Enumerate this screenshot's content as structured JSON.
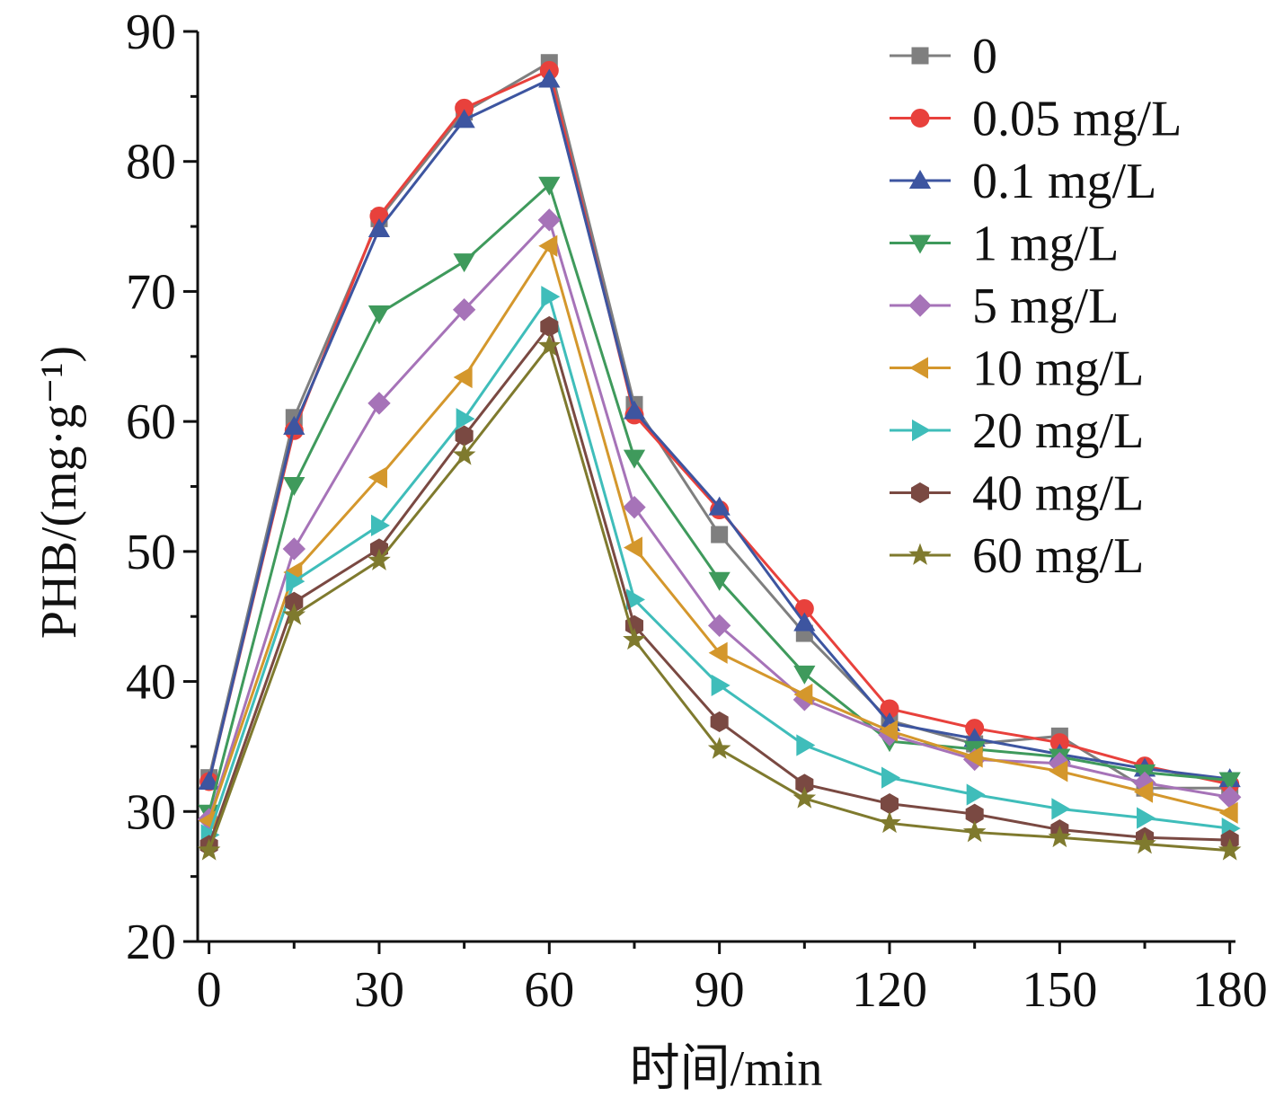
{
  "chart_data": {
    "type": "line",
    "title": "",
    "xlabel": "时间/min",
    "ylabel": "PHB/(mg·g⁻¹)",
    "xlim": [
      -2,
      181
    ],
    "ylim": [
      20,
      90
    ],
    "xticks": [
      0,
      30,
      60,
      90,
      120,
      150,
      180
    ],
    "yticks": [
      20,
      30,
      40,
      50,
      60,
      70,
      80,
      90
    ],
    "grid": false,
    "legend_position": "top-right",
    "x": [
      0,
      15,
      30,
      45,
      60,
      75,
      90,
      105,
      120,
      135,
      150,
      165,
      180
    ],
    "series": [
      {
        "name": "0",
        "color": "#7f7f7f",
        "marker": "square",
        "values": [
          32.6,
          60.3,
          75.6,
          83.8,
          87.6,
          61.3,
          51.3,
          43.7,
          37.0,
          35.2,
          35.8,
          31.8,
          31.8
        ]
      },
      {
        "name": "0.05 mg/L",
        "color": "#e8413c",
        "marker": "circle",
        "values": [
          32.3,
          59.3,
          75.8,
          84.1,
          87.0,
          60.5,
          53.2,
          45.6,
          37.9,
          36.4,
          35.3,
          33.5,
          32.1
        ]
      },
      {
        "name": "0.1 mg/L",
        "color": "#3d55a0",
        "marker": "triangle-up",
        "values": [
          32.3,
          59.6,
          74.8,
          83.2,
          86.3,
          60.8,
          53.4,
          44.5,
          36.8,
          35.6,
          34.4,
          33.3,
          32.5
        ]
      },
      {
        "name": "1 mg/L",
        "color": "#3f9a5c",
        "marker": "triangle-down",
        "values": [
          29.9,
          55.1,
          68.3,
          72.3,
          78.2,
          57.2,
          47.8,
          40.6,
          35.4,
          34.8,
          34.2,
          33.0,
          32.4
        ]
      },
      {
        "name": "5 mg/L",
        "color": "#a673b8",
        "marker": "diamond",
        "values": [
          29.4,
          50.2,
          61.4,
          68.6,
          75.5,
          53.4,
          44.3,
          38.6,
          35.9,
          34.0,
          33.7,
          32.2,
          31.1
        ]
      },
      {
        "name": "10 mg/L",
        "color": "#d4972c",
        "marker": "triangle-left",
        "values": [
          29.3,
          48.4,
          55.7,
          63.4,
          73.5,
          50.3,
          42.2,
          39.0,
          36.2,
          34.2,
          33.1,
          31.5,
          29.9
        ]
      },
      {
        "name": "20 mg/L",
        "color": "#3fbdba",
        "marker": "triangle-right",
        "values": [
          28.2,
          47.7,
          52.0,
          60.2,
          69.6,
          46.3,
          39.7,
          35.1,
          32.6,
          31.3,
          30.2,
          29.5,
          28.7
        ]
      },
      {
        "name": "40 mg/L",
        "color": "#7a4942",
        "marker": "hexagon",
        "values": [
          27.4,
          46.1,
          50.2,
          58.9,
          67.3,
          44.3,
          36.9,
          32.1,
          30.6,
          29.8,
          28.6,
          28.0,
          27.8
        ]
      },
      {
        "name": "60 mg/L",
        "color": "#7f7a2e",
        "marker": "star",
        "values": [
          27.0,
          45.1,
          49.3,
          57.4,
          65.8,
          43.2,
          34.8,
          31.0,
          29.1,
          28.4,
          28.0,
          27.5,
          27.0
        ]
      }
    ]
  }
}
